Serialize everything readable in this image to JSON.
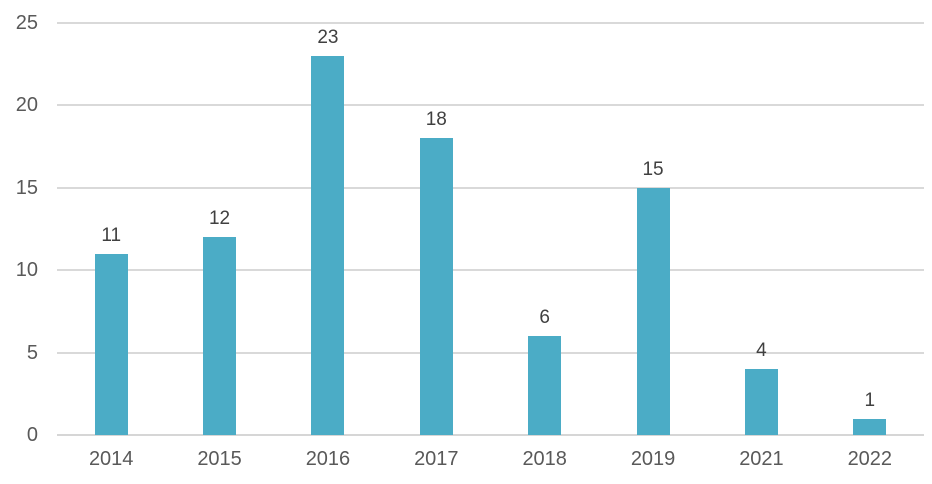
{
  "chart_data": {
    "type": "bar",
    "categories": [
      "2014",
      "2015",
      "2016",
      "2017",
      "2018",
      "2019",
      "2021",
      "2022"
    ],
    "values": [
      11,
      12,
      23,
      18,
      6,
      15,
      4,
      1
    ],
    "data_labels": [
      "11",
      "12",
      "23",
      "18",
      "6",
      "15",
      "4",
      "1"
    ],
    "title": "",
    "xlabel": "",
    "ylabel": "",
    "ylim": [
      0,
      25
    ],
    "yticks": [
      0,
      5,
      10,
      15,
      20,
      25
    ],
    "ytick_labels": [
      "0",
      "5",
      "10",
      "15",
      "20",
      "25"
    ],
    "grid": true,
    "legend": false,
    "colors": {
      "bar_fill": "#4BACC6",
      "gridline": "#D9D9D9",
      "axis_line": "#D6D6D6",
      "axis_text": "#595959",
      "value_text": "#404040",
      "background": "#FFFFFF"
    }
  }
}
